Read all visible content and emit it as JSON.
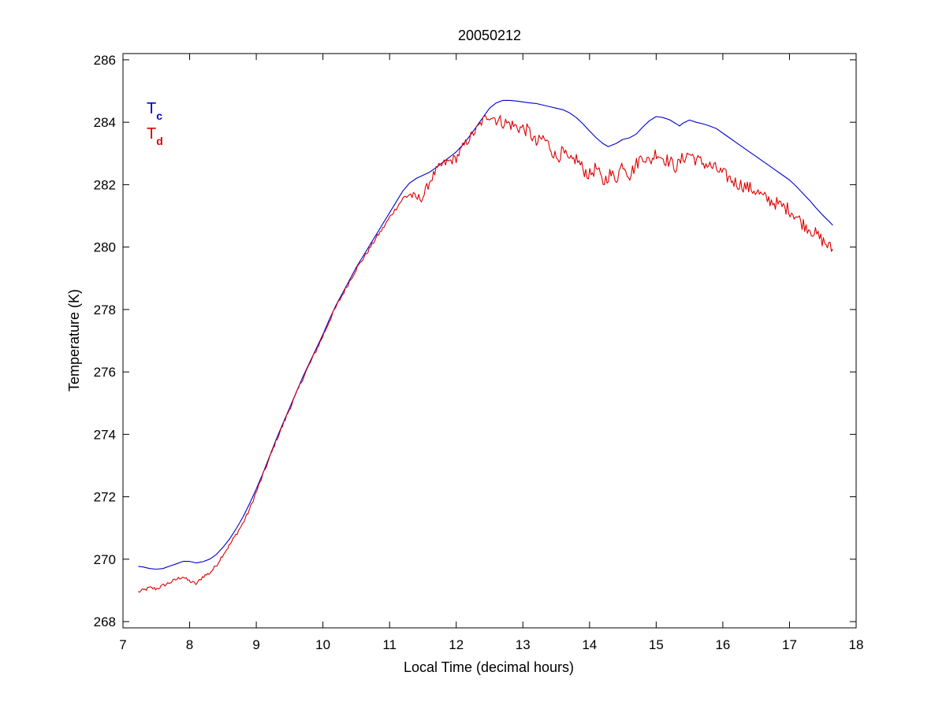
{
  "chart_data": {
    "type": "line",
    "title": "20050212",
    "xlabel": "Local Time (decimal hours)",
    "ylabel": "Temperature (K)",
    "xlim": [
      7,
      18
    ],
    "ylim": [
      267.8,
      286.2
    ],
    "xticks": [
      7,
      8,
      9,
      10,
      11,
      12,
      13,
      14,
      15,
      16,
      17,
      18
    ],
    "yticks": [
      268,
      270,
      272,
      274,
      276,
      278,
      280,
      282,
      284,
      286
    ],
    "grid": false,
    "legend_position": "top-left",
    "series": [
      {
        "name": "T",
        "subscript": "c",
        "color": "#0000cc",
        "noise": 0,
        "points": [
          [
            7.23,
            269.77
          ],
          [
            7.3,
            269.75
          ],
          [
            7.4,
            269.7
          ],
          [
            7.5,
            269.68
          ],
          [
            7.6,
            269.7
          ],
          [
            7.7,
            269.78
          ],
          [
            7.8,
            269.85
          ],
          [
            7.9,
            269.93
          ],
          [
            8.0,
            269.93
          ],
          [
            8.1,
            269.88
          ],
          [
            8.2,
            269.92
          ],
          [
            8.3,
            270.0
          ],
          [
            8.4,
            270.15
          ],
          [
            8.5,
            270.38
          ],
          [
            8.6,
            270.65
          ],
          [
            8.7,
            270.98
          ],
          [
            8.8,
            271.35
          ],
          [
            8.9,
            271.78
          ],
          [
            9.0,
            272.25
          ],
          [
            9.1,
            272.75
          ],
          [
            9.2,
            273.3
          ],
          [
            9.3,
            273.85
          ],
          [
            9.4,
            274.35
          ],
          [
            9.5,
            274.85
          ],
          [
            9.6,
            275.35
          ],
          [
            9.7,
            275.85
          ],
          [
            9.8,
            276.3
          ],
          [
            9.9,
            276.75
          ],
          [
            10.0,
            277.2
          ],
          [
            10.1,
            277.7
          ],
          [
            10.2,
            278.15
          ],
          [
            10.3,
            278.55
          ],
          [
            10.4,
            278.95
          ],
          [
            10.5,
            279.35
          ],
          [
            10.6,
            279.7
          ],
          [
            10.7,
            280.05
          ],
          [
            10.8,
            280.4
          ],
          [
            10.9,
            280.75
          ],
          [
            11.0,
            281.1
          ],
          [
            11.1,
            281.45
          ],
          [
            11.2,
            281.8
          ],
          [
            11.3,
            282.05
          ],
          [
            11.4,
            282.2
          ],
          [
            11.5,
            282.3
          ],
          [
            11.6,
            282.4
          ],
          [
            11.7,
            282.55
          ],
          [
            11.8,
            282.72
          ],
          [
            11.9,
            282.88
          ],
          [
            12.0,
            283.05
          ],
          [
            12.1,
            283.28
          ],
          [
            12.2,
            283.55
          ],
          [
            12.3,
            283.85
          ],
          [
            12.4,
            284.15
          ],
          [
            12.5,
            284.45
          ],
          [
            12.6,
            284.62
          ],
          [
            12.7,
            284.7
          ],
          [
            12.8,
            284.7
          ],
          [
            12.9,
            284.68
          ],
          [
            13.0,
            284.65
          ],
          [
            13.1,
            284.62
          ],
          [
            13.2,
            284.6
          ],
          [
            13.3,
            284.55
          ],
          [
            13.4,
            284.5
          ],
          [
            13.5,
            284.45
          ],
          [
            13.6,
            284.4
          ],
          [
            13.7,
            284.3
          ],
          [
            13.8,
            284.15
          ],
          [
            13.9,
            283.95
          ],
          [
            14.0,
            283.72
          ],
          [
            14.1,
            283.5
          ],
          [
            14.2,
            283.32
          ],
          [
            14.28,
            283.22
          ],
          [
            14.4,
            283.32
          ],
          [
            14.5,
            283.45
          ],
          [
            14.6,
            283.5
          ],
          [
            14.7,
            283.62
          ],
          [
            14.8,
            283.85
          ],
          [
            14.9,
            284.05
          ],
          [
            15.0,
            284.18
          ],
          [
            15.1,
            284.15
          ],
          [
            15.2,
            284.08
          ],
          [
            15.3,
            283.95
          ],
          [
            15.35,
            283.88
          ],
          [
            15.4,
            283.97
          ],
          [
            15.5,
            284.07
          ],
          [
            15.6,
            284.0
          ],
          [
            15.7,
            283.95
          ],
          [
            15.8,
            283.88
          ],
          [
            15.9,
            283.8
          ],
          [
            16.0,
            283.65
          ],
          [
            16.1,
            283.5
          ],
          [
            16.2,
            283.35
          ],
          [
            16.3,
            283.2
          ],
          [
            16.4,
            283.05
          ],
          [
            16.5,
            282.9
          ],
          [
            16.6,
            282.75
          ],
          [
            16.7,
            282.6
          ],
          [
            16.8,
            282.45
          ],
          [
            16.9,
            282.3
          ],
          [
            17.0,
            282.15
          ],
          [
            17.1,
            281.95
          ],
          [
            17.2,
            281.72
          ],
          [
            17.3,
            281.5
          ],
          [
            17.4,
            281.25
          ],
          [
            17.5,
            281.02
          ],
          [
            17.65,
            280.7
          ]
        ]
      },
      {
        "name": "T",
        "subscript": "d",
        "color": "#dd0000",
        "noise": 0.12,
        "points": [
          [
            7.23,
            268.95
          ],
          [
            7.3,
            269.0
          ],
          [
            7.4,
            269.08
          ],
          [
            7.5,
            269.05
          ],
          [
            7.6,
            269.15
          ],
          [
            7.7,
            269.25
          ],
          [
            7.8,
            269.35
          ],
          [
            7.9,
            269.45
          ],
          [
            7.95,
            269.35
          ],
          [
            8.0,
            269.3
          ],
          [
            8.1,
            269.2
          ],
          [
            8.2,
            269.45
          ],
          [
            8.3,
            269.55
          ],
          [
            8.4,
            269.8
          ],
          [
            8.5,
            270.15
          ],
          [
            8.6,
            270.45
          ],
          [
            8.7,
            270.8
          ],
          [
            8.8,
            271.15
          ],
          [
            8.9,
            271.6
          ],
          [
            9.0,
            272.15
          ],
          [
            9.1,
            272.7
          ],
          [
            9.2,
            273.25
          ],
          [
            9.3,
            273.8
          ],
          [
            9.4,
            274.3
          ],
          [
            9.5,
            274.82
          ],
          [
            9.6,
            275.3
          ],
          [
            9.7,
            275.8
          ],
          [
            9.8,
            276.25
          ],
          [
            9.9,
            276.7
          ],
          [
            10.0,
            277.15
          ],
          [
            10.1,
            277.65
          ],
          [
            10.2,
            278.1
          ],
          [
            10.3,
            278.5
          ],
          [
            10.4,
            278.9
          ],
          [
            10.5,
            279.3
          ],
          [
            10.6,
            279.62
          ],
          [
            10.7,
            279.95
          ],
          [
            10.8,
            280.3
          ],
          [
            10.9,
            280.6
          ],
          [
            11.0,
            280.95
          ],
          [
            11.1,
            281.25
          ],
          [
            11.2,
            281.55
          ],
          [
            11.3,
            281.7
          ],
          [
            11.4,
            281.55
          ],
          [
            11.5,
            281.6
          ],
          [
            11.6,
            282.1
          ],
          [
            11.7,
            282.45
          ],
          [
            11.8,
            282.65
          ],
          [
            11.9,
            282.75
          ],
          [
            12.0,
            282.85
          ],
          [
            12.1,
            283.2
          ],
          [
            12.2,
            283.5
          ],
          [
            12.3,
            283.75
          ],
          [
            12.4,
            284.05
          ],
          [
            12.5,
            284.25
          ],
          [
            12.6,
            284.1
          ],
          [
            12.7,
            284.0
          ],
          [
            12.8,
            283.95
          ],
          [
            12.9,
            283.85
          ],
          [
            13.0,
            283.8
          ],
          [
            13.1,
            283.7
          ],
          [
            13.2,
            283.3
          ],
          [
            13.3,
            283.5
          ],
          [
            13.4,
            283.25
          ],
          [
            13.5,
            282.85
          ],
          [
            13.6,
            283.05
          ],
          [
            13.7,
            282.7
          ],
          [
            13.8,
            282.85
          ],
          [
            13.9,
            282.5
          ],
          [
            14.0,
            282.3
          ],
          [
            14.1,
            282.55
          ],
          [
            14.2,
            282.05
          ],
          [
            14.3,
            282.35
          ],
          [
            14.4,
            282.2
          ],
          [
            14.5,
            282.7
          ],
          [
            14.6,
            282.3
          ],
          [
            14.7,
            282.65
          ],
          [
            14.8,
            282.95
          ],
          [
            14.9,
            282.7
          ],
          [
            15.0,
            283.05
          ],
          [
            15.1,
            282.85
          ],
          [
            15.2,
            282.75
          ],
          [
            15.3,
            282.55
          ],
          [
            15.4,
            282.85
          ],
          [
            15.5,
            283.0
          ],
          [
            15.6,
            282.8
          ],
          [
            15.7,
            282.7
          ],
          [
            15.8,
            282.6
          ],
          [
            15.9,
            282.5
          ],
          [
            16.0,
            282.35
          ],
          [
            16.1,
            282.2
          ],
          [
            16.2,
            282.05
          ],
          [
            16.3,
            281.98
          ],
          [
            16.4,
            281.88
          ],
          [
            16.5,
            281.8
          ],
          [
            16.6,
            281.6
          ],
          [
            16.7,
            281.5
          ],
          [
            16.8,
            281.4
          ],
          [
            16.9,
            281.3
          ],
          [
            17.0,
            281.2
          ],
          [
            17.1,
            281.0
          ],
          [
            17.2,
            280.75
          ],
          [
            17.3,
            280.6
          ],
          [
            17.4,
            280.4
          ],
          [
            17.5,
            280.2
          ],
          [
            17.65,
            279.9
          ]
        ]
      }
    ]
  }
}
